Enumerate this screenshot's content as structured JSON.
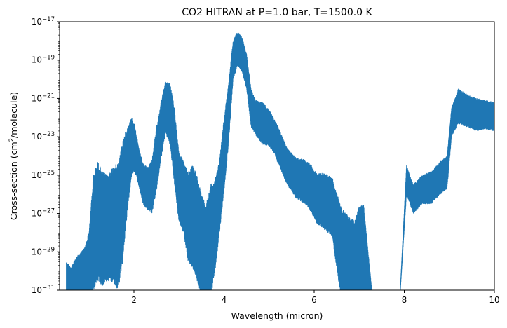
{
  "chart_data": {
    "type": "line",
    "title": "CO2 HITRAN at P=1.0 bar, T=1500.0 K",
    "xlabel": "Wavelength (micron)",
    "ylabel_base": "Cross-section (cm",
    "ylabel_sup": "2",
    "ylabel_tail": "/molecule)",
    "xlim": [
      0.35,
      10
    ],
    "ylim": [
      1e-31,
      1e-17
    ],
    "yscale": "log",
    "xticks": [
      2,
      4,
      6,
      8,
      10
    ],
    "xtick_labels": [
      "2",
      "4",
      "6",
      "8",
      "10"
    ],
    "yticks": [
      -31,
      -29,
      -27,
      -25,
      -23,
      -21,
      -19,
      -17
    ],
    "ytick_base": "10",
    "ytick_exponents": [
      "−31",
      "−29",
      "−27",
      "−25",
      "−23",
      "−21",
      "−19",
      "−17"
    ],
    "grid": false,
    "line_color": "#1f77b4",
    "series": [
      {
        "envelope_log10": {
          "x": [
            0.5,
            0.6,
            0.75,
            0.9,
            1.0,
            1.1,
            1.2,
            1.3,
            1.4,
            1.55,
            1.65,
            1.75,
            1.85,
            1.95,
            2.02,
            2.1,
            2.2,
            2.3,
            2.4,
            2.5,
            2.6,
            2.7,
            2.8,
            2.9,
            3.0,
            3.1,
            3.2,
            3.3,
            3.4,
            3.5,
            3.6,
            3.7,
            3.8,
            3.9,
            4.0,
            4.1,
            4.2,
            4.3,
            4.4,
            4.5,
            4.6,
            4.7,
            4.85,
            5.0,
            5.1,
            5.2,
            5.4,
            5.6,
            5.8,
            5.95,
            6.05,
            6.2,
            6.4,
            6.6,
            6.8,
            6.9,
            7.0,
            7.1,
            7.3,
            7.6,
            7.9,
            8.05,
            8.2,
            8.4,
            8.6,
            8.8,
            8.95,
            9.05,
            9.2,
            9.4,
            9.6,
            9.8,
            10.0
          ],
          "high": [
            -29.5,
            -29.8,
            -29.2,
            -28.8,
            -28.0,
            -25.0,
            -24.3,
            -24.8,
            -25.0,
            -24.5,
            -24.4,
            -23.2,
            -22.5,
            -22.0,
            -22.4,
            -23.5,
            -24.4,
            -24.6,
            -24.2,
            -22.5,
            -21.2,
            -20.1,
            -20.2,
            -21.5,
            -23.8,
            -24.3,
            -24.8,
            -24.5,
            -25.0,
            -26.0,
            -26.5,
            -25.5,
            -25.2,
            -24.2,
            -22.0,
            -20.2,
            -18.0,
            -17.5,
            -17.8,
            -18.7,
            -20.5,
            -21.1,
            -21.2,
            -21.6,
            -22.0,
            -22.5,
            -23.6,
            -24.1,
            -24.2,
            -24.5,
            -24.9,
            -24.9,
            -25.1,
            -26.7,
            -27.2,
            -27.4,
            -26.6,
            -26.5,
            -31.5,
            -31.5,
            -31.5,
            -24.5,
            -25.5,
            -25.0,
            -24.8,
            -24.3,
            -24.0,
            -21.5,
            -20.5,
            -20.8,
            -21.0,
            -21.1,
            -21.2
          ],
          "low": [
            -31.2,
            -31.5,
            -31.5,
            -31.5,
            -31.5,
            -31.0,
            -30.5,
            -30.8,
            -30.5,
            -30.6,
            -31.0,
            -29.5,
            -27.0,
            -25.0,
            -24.8,
            -25.5,
            -26.5,
            -26.8,
            -27.0,
            -25.8,
            -24.2,
            -22.8,
            -23.4,
            -25.5,
            -27.5,
            -28.0,
            -29.5,
            -29.8,
            -30.5,
            -31.5,
            -31.5,
            -31.5,
            -30.0,
            -28.0,
            -25.8,
            -23.4,
            -20.0,
            -19.3,
            -19.6,
            -20.5,
            -22.5,
            -22.9,
            -23.4,
            -23.5,
            -23.8,
            -24.4,
            -25.5,
            -26.2,
            -26.5,
            -27.0,
            -27.5,
            -27.8,
            -28.2,
            -31.5,
            -31.5,
            -31.5,
            -31.5,
            -31.5,
            -31.5,
            -31.5,
            -31.5,
            -26.0,
            -27.0,
            -26.5,
            -26.5,
            -26.0,
            -25.7,
            -23.0,
            -22.3,
            -22.5,
            -22.7,
            -22.6,
            -22.7
          ]
        }
      }
    ]
  }
}
